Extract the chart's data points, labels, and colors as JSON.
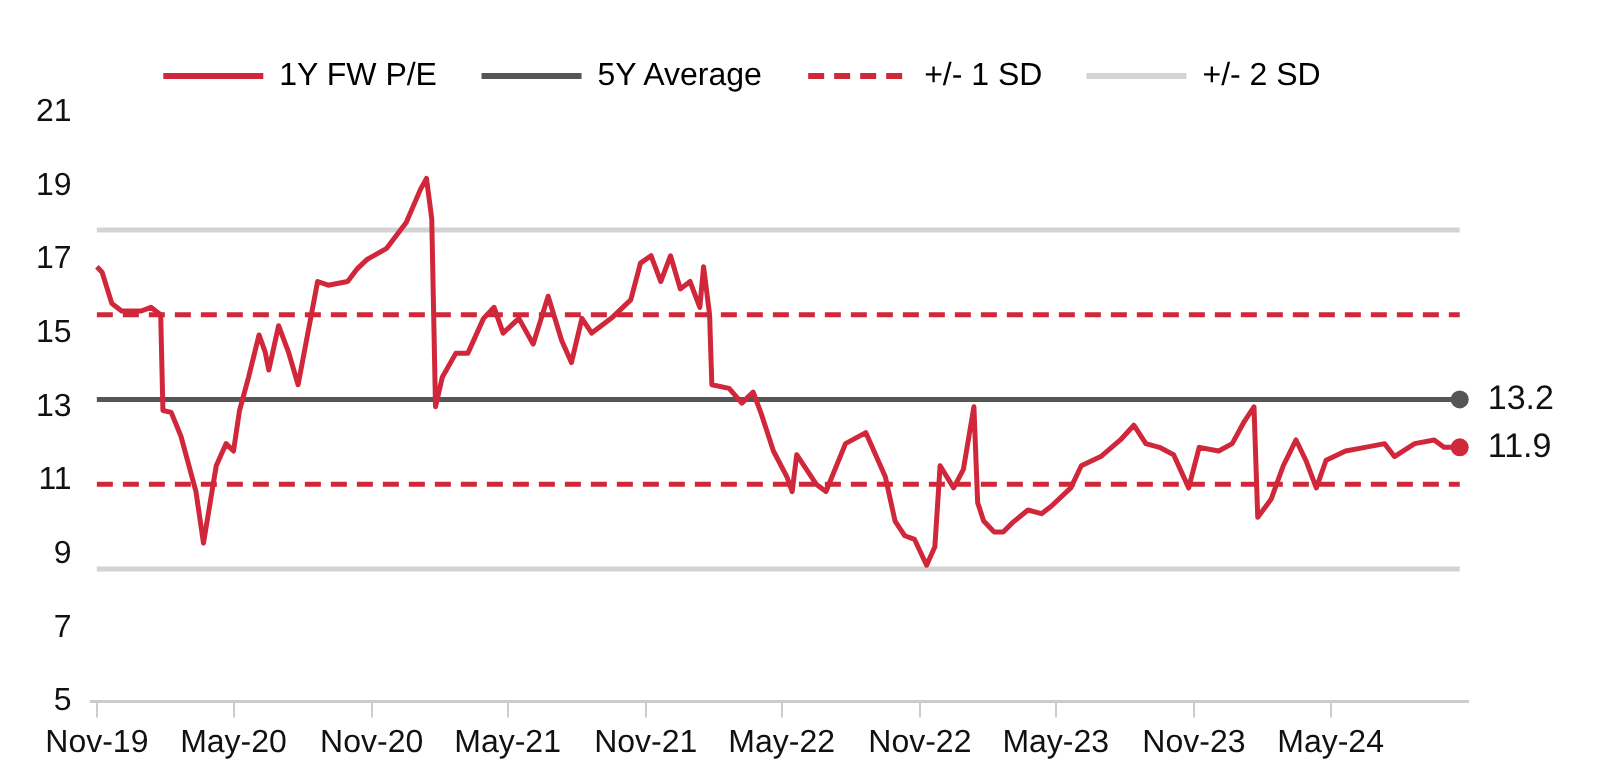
{
  "chart_data": {
    "type": "line",
    "legend": "top",
    "grid": false,
    "xlim": [
      "2019-10-25",
      "2024-10-31"
    ],
    "xticks": [
      {
        "value": "2019-11-01",
        "label": "Nov-19"
      },
      {
        "value": "2020-05-01",
        "label": "May-20"
      },
      {
        "value": "2020-11-01",
        "label": "Nov-20"
      },
      {
        "value": "2021-05-01",
        "label": "May-21"
      },
      {
        "value": "2021-11-01",
        "label": "Nov-21"
      },
      {
        "value": "2022-05-01",
        "label": "May-22"
      },
      {
        "value": "2022-11-01",
        "label": "Nov-22"
      },
      {
        "value": "2023-05-01",
        "label": "May-23"
      },
      {
        "value": "2023-11-01",
        "label": "Nov-23"
      },
      {
        "value": "2024-05-01",
        "label": "May-24"
      }
    ],
    "ylim": [
      5,
      21
    ],
    "yticks": [
      5,
      7,
      9,
      11,
      13,
      15,
      17,
      19,
      21
    ],
    "series": [
      {
        "name": "1Y FW P/E",
        "color": "#d0283a",
        "line_style": "solid",
        "x": [
          "2019-11-01",
          "2019-11-08",
          "2019-11-21",
          "2019-12-04",
          "2019-12-30",
          "2020-01-12",
          "2020-01-25",
          "2020-01-28",
          "2020-02-08",
          "2020-02-21",
          "2020-03-12",
          "2020-03-22",
          "2020-04-08",
          "2020-04-21",
          "2020-05-01",
          "2020-05-09",
          "2020-05-21",
          "2020-06-04",
          "2020-06-12",
          "2020-06-17",
          "2020-06-30",
          "2020-07-13",
          "2020-07-26",
          "2020-08-08",
          "2020-08-21",
          "2020-09-04",
          "2020-09-30",
          "2020-10-13",
          "2020-10-26",
          "2020-11-21",
          "2020-12-17",
          "2021-01-05",
          "2021-01-13",
          "2021-01-20",
          "2021-01-25",
          "2021-02-03",
          "2021-02-21",
          "2021-03-09",
          "2021-03-30",
          "2021-04-13",
          "2021-04-25",
          "2021-05-16",
          "2021-06-04",
          "2021-06-24",
          "2021-07-12",
          "2021-07-25",
          "2021-08-08",
          "2021-08-21",
          "2021-09-16",
          "2021-10-12",
          "2021-10-25",
          "2021-11-08",
          "2021-11-21",
          "2021-12-04",
          "2021-12-17",
          "2021-12-30",
          "2022-01-12",
          "2022-01-17",
          "2022-01-25",
          "2022-01-28",
          "2022-02-20",
          "2022-03-09",
          "2022-03-24",
          "2022-04-04",
          "2022-04-20",
          "2022-05-08",
          "2022-05-15",
          "2022-05-21",
          "2022-06-16",
          "2022-06-29",
          "2022-07-25",
          "2022-08-21",
          "2022-09-16",
          "2022-09-29",
          "2022-10-12",
          "2022-10-25",
          "2022-11-10",
          "2022-11-21",
          "2022-11-28",
          "2022-12-16",
          "2022-12-29",
          "2023-01-12",
          "2023-01-17",
          "2023-01-25",
          "2023-02-08",
          "2023-02-20",
          "2023-03-04",
          "2023-03-25",
          "2023-04-12",
          "2023-04-25",
          "2023-05-21",
          "2023-06-04",
          "2023-06-30",
          "2023-07-26",
          "2023-08-13",
          "2023-08-29",
          "2023-09-16",
          "2023-10-05",
          "2023-10-25",
          "2023-11-08",
          "2023-12-04",
          "2023-12-22",
          "2024-01-07",
          "2024-01-20",
          "2024-01-25",
          "2024-02-12",
          "2024-02-28",
          "2024-03-16",
          "2024-03-29",
          "2024-04-12",
          "2024-04-25",
          "2024-05-21",
          "2024-06-16",
          "2024-07-12",
          "2024-07-25",
          "2024-08-21",
          "2024-09-16",
          "2024-09-29",
          "2024-10-20"
        ],
        "values": [
          16.8,
          16.65,
          15.8,
          15.6,
          15.6,
          15.7,
          15.5,
          12.9,
          12.85,
          12.2,
          10.7,
          9.3,
          11.4,
          12.0,
          11.8,
          12.9,
          13.8,
          14.95,
          14.5,
          14.0,
          15.2,
          14.5,
          13.6,
          15.0,
          16.4,
          16.3,
          16.4,
          16.75,
          17.0,
          17.3,
          18.0,
          18.9,
          19.2,
          18.1,
          13.0,
          13.8,
          14.45,
          14.45,
          15.4,
          15.7,
          15.0,
          15.4,
          14.7,
          16.0,
          14.8,
          14.2,
          15.4,
          15.0,
          15.4,
          15.9,
          16.9,
          17.1,
          16.4,
          17.1,
          16.2,
          16.4,
          15.7,
          16.8,
          15.5,
          13.6,
          13.5,
          13.1,
          13.4,
          12.8,
          11.8,
          11.1,
          10.7,
          11.7,
          10.9,
          10.7,
          12.0,
          12.3,
          11.1,
          9.9,
          9.5,
          9.4,
          8.7,
          9.2,
          11.4,
          10.8,
          11.3,
          13.0,
          10.4,
          9.9,
          9.6,
          9.6,
          9.85,
          10.2,
          10.1,
          10.3,
          10.8,
          11.4,
          11.65,
          12.1,
          12.5,
          12.0,
          11.9,
          11.7,
          10.8,
          11.9,
          11.8,
          12.0,
          12.6,
          13.0,
          10.0,
          10.5,
          11.4,
          12.1,
          11.55,
          10.8,
          11.55,
          11.8,
          11.9,
          12.0,
          11.65,
          12.0,
          12.1,
          11.9,
          11.9
        ]
      },
      {
        "name": "5Y Average",
        "color": "#555555",
        "line_style": "solid",
        "x": [
          "2019-11-01",
          "2024-10-20"
        ],
        "values": [
          13.2,
          13.2
        ]
      },
      {
        "name": "+/- 1 SD",
        "color": "#d0283a",
        "line_style": "dashed",
        "x": [
          "2019-11-01",
          "2024-10-20"
        ],
        "values": [
          15.5,
          15.5
        ]
      },
      {
        "name": "+/- 2 SD",
        "color": "#d3d3d3",
        "line_style": "solid",
        "x": [
          "2019-11-01",
          "2024-10-20"
        ],
        "values": [
          17.8,
          17.8
        ]
      },
      {
        "color": "#d0283a",
        "line_style": "dashed",
        "x": [
          "2019-11-01",
          "2024-10-20"
        ],
        "values": [
          10.9,
          10.9
        ]
      },
      {
        "color": "#d3d3d3",
        "line_style": "solid",
        "x": [
          "2019-11-01",
          "2024-10-20"
        ],
        "values": [
          8.6,
          8.6
        ]
      }
    ],
    "annotations": [
      {
        "text": "13.2",
        "x": "2024-10-20",
        "y": 13.2
      },
      {
        "text": "11.9",
        "x": "2024-10-20",
        "y": 11.9
      }
    ]
  }
}
